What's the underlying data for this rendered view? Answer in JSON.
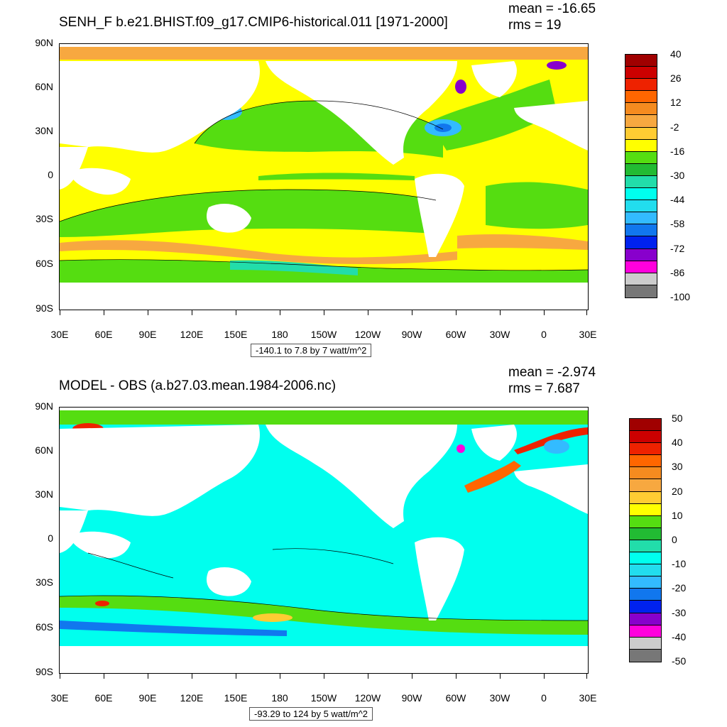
{
  "panels": [
    {
      "title": "SENH_F b.e21.BHIST.f09_g17.CMIP6-historical.011 [1971-2000]",
      "mean_text": "mean = -16.65",
      "rms_text": "rms = 19",
      "range_text": "-140.1 to 7.8 by 7 watt/m^2",
      "lat_labels": [
        "90N",
        "60N",
        "30N",
        "0",
        "30S",
        "60S",
        "90S"
      ],
      "lon_labels": [
        "30E",
        "60E",
        "90E",
        "120E",
        "150E",
        "180",
        "150W",
        "120W",
        "90W",
        "60W",
        "30W",
        "0",
        "30E"
      ],
      "colorbar_labels": [
        "40",
        "26",
        "12",
        "-2",
        "-16",
        "-30",
        "-44",
        "-58",
        "-72",
        "-86",
        "-100"
      ],
      "colorbar_colors": [
        "#a00000",
        "#cc0000",
        "#ee2200",
        "#ff6600",
        "#f58b1f",
        "#f7a840",
        "#ffcc33",
        "#ffff00",
        "#55dd11",
        "#22bb33",
        "#22ddaa",
        "#00ffee",
        "#22ddee",
        "#33bbff",
        "#1177ee",
        "#0022ee",
        "#8800cc",
        "#ff00dd",
        "#cccccc",
        "#777777"
      ]
    },
    {
      "title": "MODEL - OBS (a.b27.03.mean.1984-2006.nc)",
      "mean_text": "mean = -2.974",
      "rms_text": "rms = 7.687",
      "range_text": "-93.29 to 124 by 5 watt/m^2",
      "lat_labels": [
        "90N",
        "60N",
        "30N",
        "0",
        "30S",
        "60S",
        "90S"
      ],
      "lon_labels": [
        "30E",
        "60E",
        "90E",
        "120E",
        "150E",
        "180",
        "150W",
        "120W",
        "90W",
        "60W",
        "30W",
        "0",
        "30E"
      ],
      "colorbar_labels": [
        "50",
        "40",
        "30",
        "20",
        "10",
        "0",
        "-10",
        "-20",
        "-30",
        "-40",
        "-50"
      ],
      "colorbar_colors": [
        "#a00000",
        "#cc0000",
        "#ee2200",
        "#ff6600",
        "#f58b1f",
        "#f7a840",
        "#ffcc33",
        "#ffff00",
        "#55dd11",
        "#22bb33",
        "#22ddaa",
        "#00ffee",
        "#22ddee",
        "#33bbff",
        "#1177ee",
        "#0022ee",
        "#8800cc",
        "#ff00dd",
        "#cccccc",
        "#777777"
      ]
    }
  ]
}
